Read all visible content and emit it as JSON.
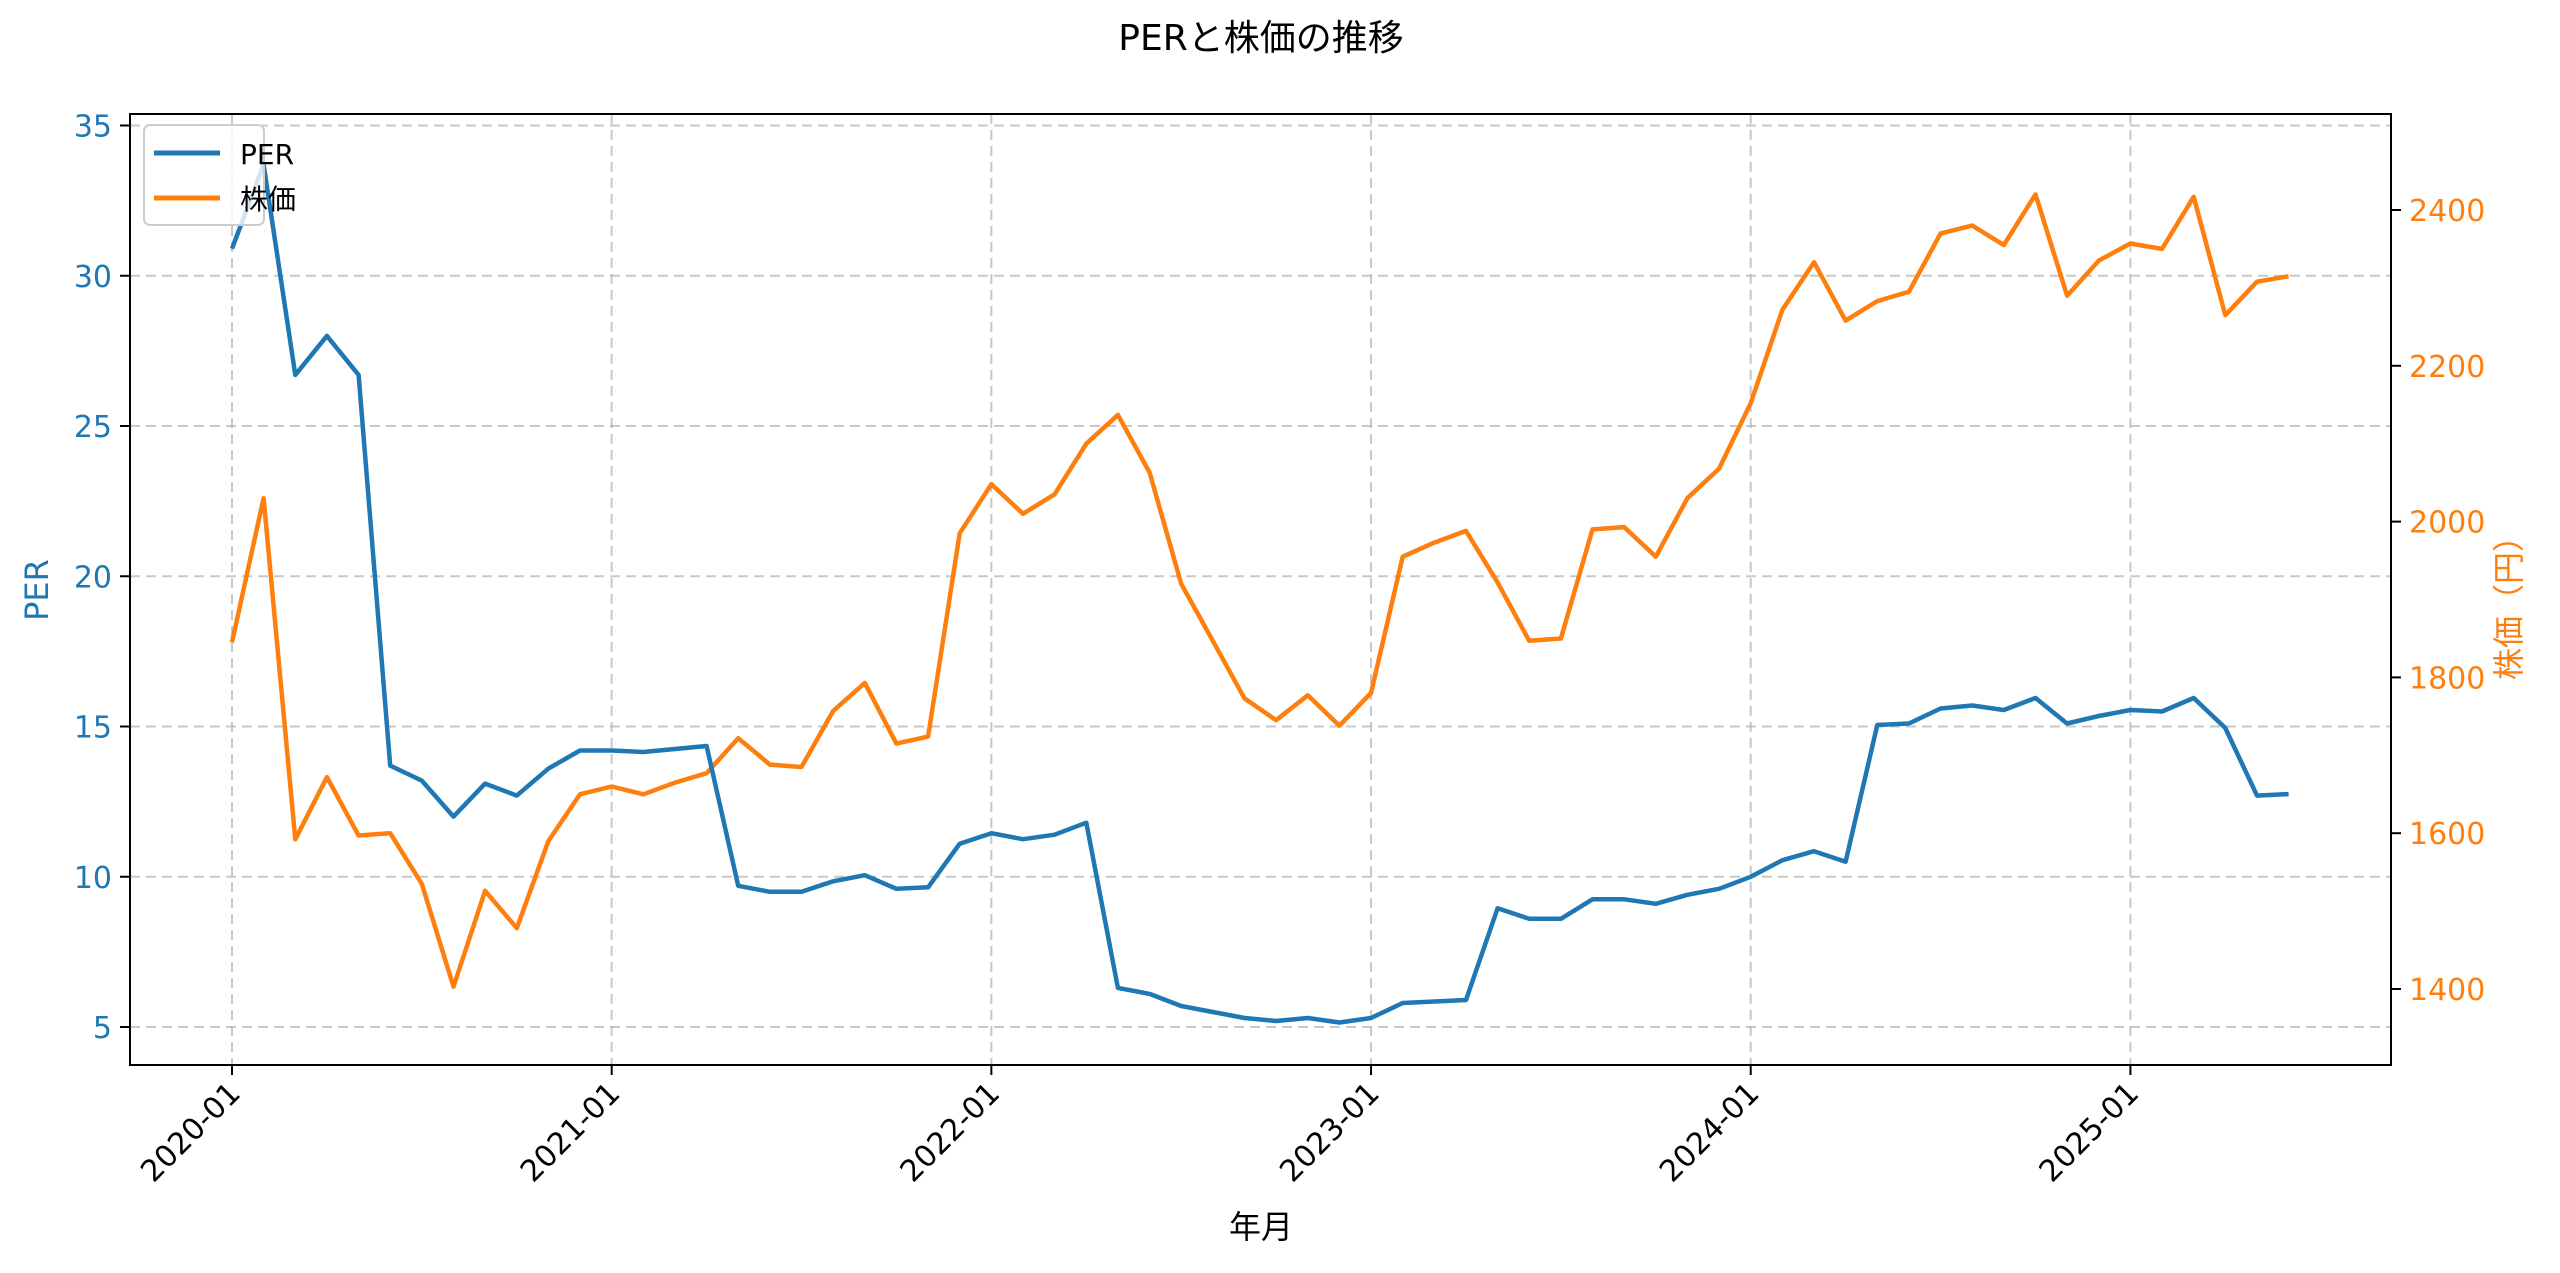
{
  "chart_data": {
    "type": "line",
    "title": "PERと株価の推移",
    "xlabel": "年月",
    "ylabel_left": "PER",
    "ylabel_right": "株価（円）",
    "x_tick_labels": [
      "2020-01",
      "2021-01",
      "2022-01",
      "2023-01",
      "2024-01",
      "2025-01"
    ],
    "y_left_ticks": [
      5,
      10,
      15,
      20,
      25,
      30,
      35
    ],
    "y_right_ticks": [
      1400,
      1600,
      1800,
      2000,
      2200,
      2400
    ],
    "ylim_left": [
      3.7,
      35.5
    ],
    "ylim_right": [
      1300,
      2518
    ],
    "grid": true,
    "legend_position": "upper left",
    "x": [
      "2020-01",
      "2020-02",
      "2020-03",
      "2020-04",
      "2020-05",
      "2020-06",
      "2020-07",
      "2020-08",
      "2020-09",
      "2020-10",
      "2020-11",
      "2020-12",
      "2021-01",
      "2021-02",
      "2021-03",
      "2021-04",
      "2021-05",
      "2021-06",
      "2021-07",
      "2021-08",
      "2021-09",
      "2021-10",
      "2021-11",
      "2021-12",
      "2022-01",
      "2022-02",
      "2022-03",
      "2022-04",
      "2022-05",
      "2022-06",
      "2022-07",
      "2022-08",
      "2022-09",
      "2022-10",
      "2022-11",
      "2022-12",
      "2023-01",
      "2023-02",
      "2023-03",
      "2023-04",
      "2023-05",
      "2023-06",
      "2023-07",
      "2023-08",
      "2023-09",
      "2023-10",
      "2023-11",
      "2023-12",
      "2024-01",
      "2024-02",
      "2024-03",
      "2024-04",
      "2024-05",
      "2024-06",
      "2024-07",
      "2024-08",
      "2024-09",
      "2024-10",
      "2024-11",
      "2024-12",
      "2025-01",
      "2025-02",
      "2025-03",
      "2025-04",
      "2025-05",
      "2025-06"
    ],
    "series": [
      {
        "name": "PER",
        "axis": "left",
        "color": "#1f77b4",
        "values": [
          30.9,
          33.7,
          26.7,
          28.0,
          26.7,
          13.7,
          13.2,
          12.0,
          13.1,
          12.7,
          13.6,
          14.2,
          14.2,
          14.15,
          14.25,
          14.35,
          9.7,
          9.5,
          9.5,
          9.85,
          10.05,
          9.6,
          9.65,
          11.1,
          11.45,
          11.25,
          11.4,
          11.8,
          6.3,
          6.1,
          5.7,
          5.5,
          5.3,
          5.2,
          5.3,
          5.15,
          5.3,
          5.8,
          5.85,
          5.9,
          8.95,
          8.6,
          8.6,
          9.25,
          9.25,
          9.1,
          9.4,
          9.6,
          10.0,
          10.55,
          10.85,
          10.5,
          15.05,
          15.1,
          15.6,
          15.7,
          15.55,
          15.95,
          15.1,
          15.35,
          15.55,
          15.5,
          15.95,
          14.95,
          12.7,
          12.75
        ]
      },
      {
        "name": "株価",
        "axis": "right",
        "color": "#ff7f0e",
        "values": [
          1845,
          2030,
          1592,
          1672,
          1597,
          1600,
          1535,
          1403,
          1526,
          1478,
          1590,
          1650,
          1660,
          1650,
          1665,
          1677,
          1722,
          1688,
          1685,
          1757,
          1793,
          1715,
          1724,
          1985,
          2048,
          2010,
          2035,
          2100,
          2137,
          2063,
          1920,
          1847,
          1773,
          1745,
          1777,
          1738,
          1780,
          1955,
          1973,
          1988,
          1922,
          1847,
          1850,
          1990,
          1993,
          1955,
          2030,
          2068,
          2152,
          2272,
          2333,
          2258,
          2283,
          2295,
          2370,
          2380,
          2355,
          2420,
          2290,
          2335,
          2357,
          2350,
          2417,
          2265,
          2308,
          2315
        ]
      }
    ]
  },
  "legend": {
    "items": [
      {
        "label": "PER",
        "color": "#1f77b4"
      },
      {
        "label": "株価",
        "color": "#ff7f0e"
      }
    ]
  },
  "colors": {
    "per": "#1f77b4",
    "price": "#ff7f0e",
    "grid": "#b0b0b0",
    "axis": "#000000"
  }
}
